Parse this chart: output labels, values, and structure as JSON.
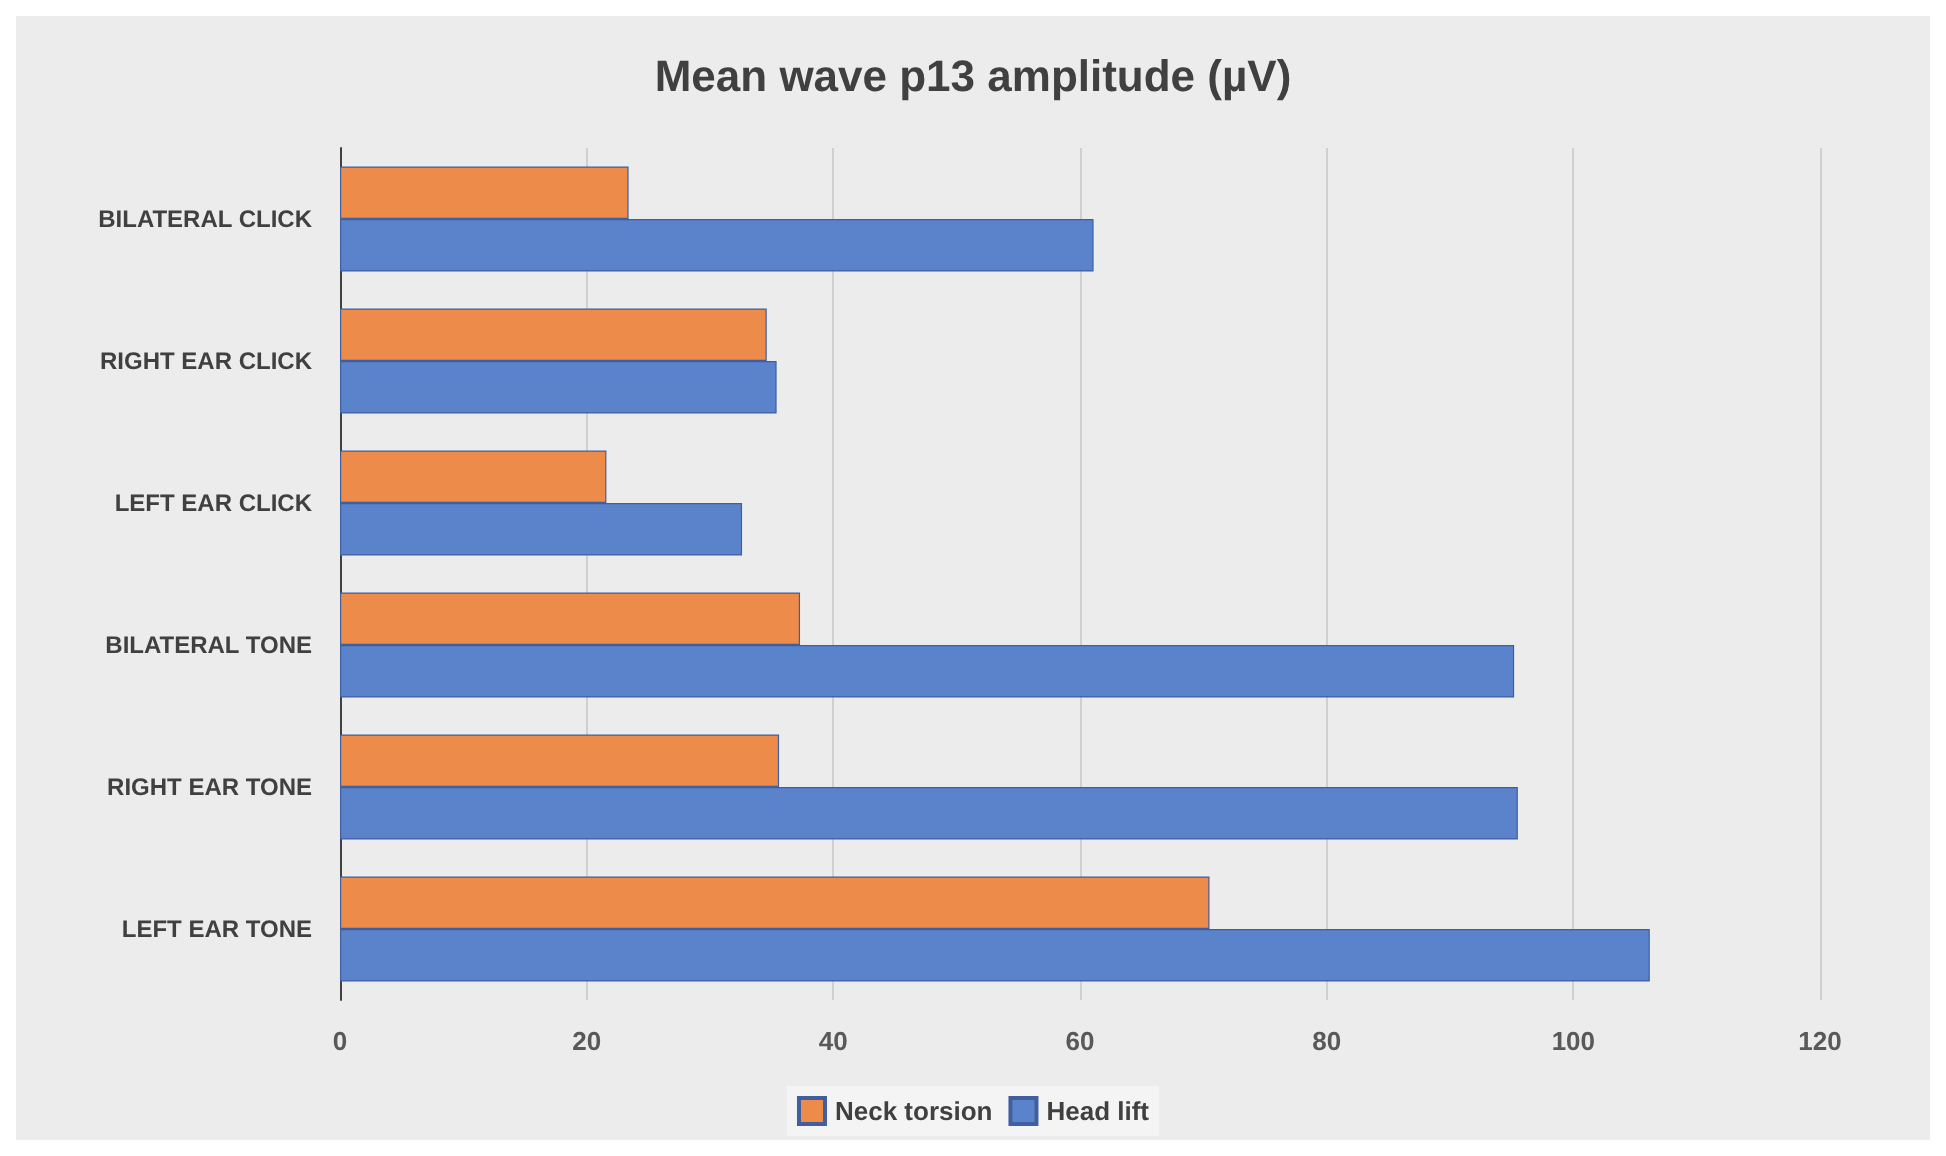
{
  "chart_data": {
    "type": "bar",
    "orientation": "horizontal",
    "title": "Mean wave p13 amplitude (µV)",
    "categories": [
      "BILATERAL CLICK",
      "RIGHT EAR CLICK",
      "LEFT EAR CLICK",
      "BILATERAL TONE",
      "RIGHT EAR TONE",
      "LEFT EAR TONE"
    ],
    "series": [
      {
        "name": "Neck torsion",
        "color": "#ed8b4a",
        "values": [
          23.4,
          34.6,
          21.6,
          37.3,
          35.6,
          70.5
        ]
      },
      {
        "name": "Head lift",
        "color": "#5a83cc",
        "values": [
          61.1,
          35.4,
          32.6,
          95.2,
          95.5,
          106.2
        ]
      }
    ],
    "xlim": [
      0,
      120
    ],
    "xticks": [
      0,
      20,
      40,
      60,
      80,
      100,
      120
    ],
    "grid": "x",
    "legend": "bottom"
  }
}
